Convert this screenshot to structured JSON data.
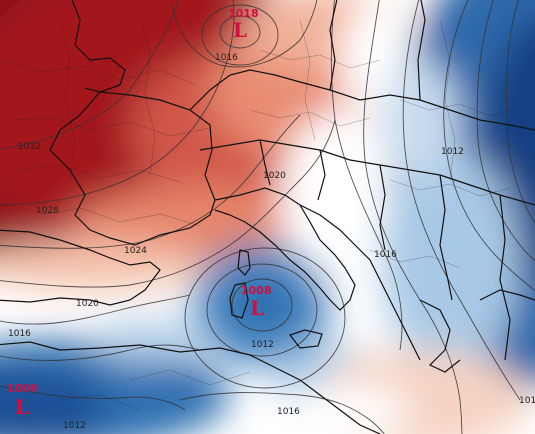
{
  "colors": {
    "high_dark": "#8a0d17",
    "high_mid": "#c7423a",
    "high_light": "#f0a489",
    "neutral": "#ffffff",
    "low_light": "#b7d3ea",
    "low_mid": "#4f8fc7",
    "low_dark": "#1d4f95",
    "center_marker": "#d01040"
  },
  "pressure_centers": [
    {
      "id": "north",
      "value": "1018",
      "symbol": "L"
    },
    {
      "id": "italy",
      "value": "1008",
      "symbol": "L"
    },
    {
      "id": "southwest",
      "value": "1009",
      "symbol": "L"
    }
  ],
  "isobar_labels": [
    {
      "id": "l1016_north",
      "text": "1016"
    },
    {
      "id": "l1032",
      "text": "1032"
    },
    {
      "id": "l1028",
      "text": "1028"
    },
    {
      "id": "l1024",
      "text": "1024"
    },
    {
      "id": "l1020_alps",
      "text": "1020"
    },
    {
      "id": "l1020_sw",
      "text": "1020"
    },
    {
      "id": "l1016_w",
      "text": "1016"
    },
    {
      "id": "l1012_e",
      "text": "1012"
    },
    {
      "id": "l1016_balkan",
      "text": "1016"
    },
    {
      "id": "l1012_italy",
      "text": "1012"
    },
    {
      "id": "l1016_s",
      "text": "1016"
    },
    {
      "id": "l1012_sw",
      "text": "1012"
    },
    {
      "id": "l101_edge",
      "text": "101"
    }
  ]
}
